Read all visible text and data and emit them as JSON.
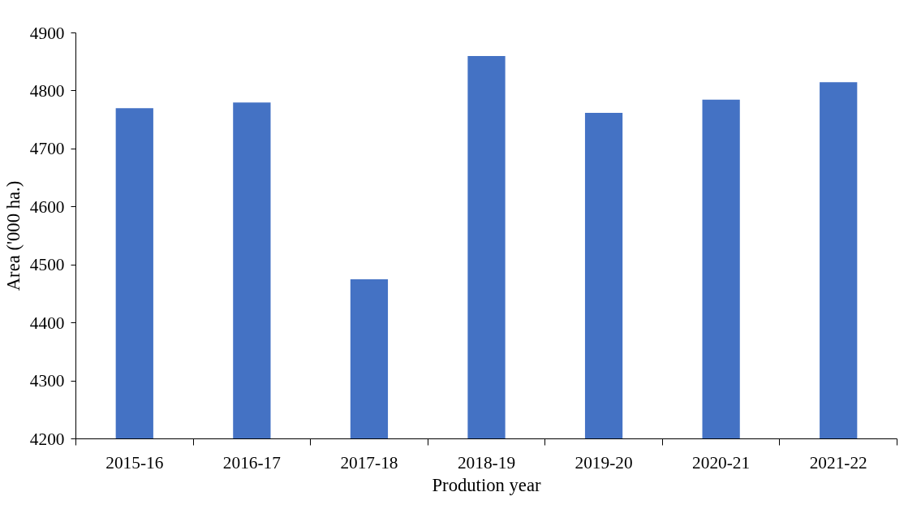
{
  "chart_data": {
    "type": "bar",
    "xlabel": "Prodution year",
    "ylabel": "Area ('000 ha.)",
    "categories": [
      "2015-16",
      "2016-17",
      "2017-18",
      "2018-19",
      "2019-20",
      "2020-21",
      "2021-22"
    ],
    "values": [
      4770,
      4780,
      4475,
      4860,
      4762,
      4785,
      4815
    ],
    "color": "#4472c4",
    "ylim": [
      4200,
      4900
    ],
    "yticks": [
      4200,
      4300,
      4400,
      4500,
      4600,
      4700,
      4800,
      4900
    ],
    "grid": false
  }
}
